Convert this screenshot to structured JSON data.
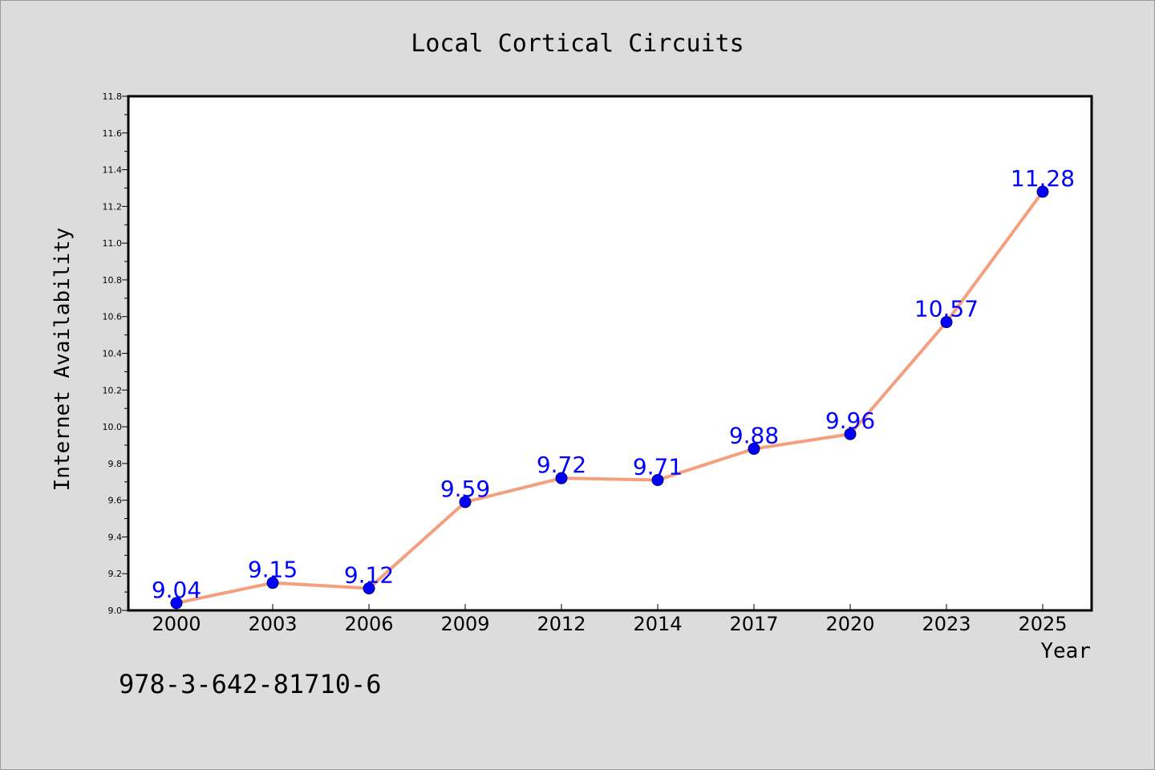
{
  "chart_data": {
    "type": "line",
    "title": "Local Cortical Circuits",
    "xlabel": "Year",
    "ylabel": "Internet Availability",
    "categories": [
      "2000",
      "2003",
      "2006",
      "2009",
      "2012",
      "2014",
      "2017",
      "2020",
      "2023",
      "2025"
    ],
    "series": [
      {
        "values": [
          9.04,
          9.15,
          9.12,
          9.59,
          9.72,
          9.71,
          9.88,
          9.96,
          10.57,
          11.28
        ],
        "data_labels": [
          "9.04",
          "9.15",
          "9.12",
          "9.59",
          "9.72",
          "9.71",
          "9.88",
          "9.96",
          "10.57",
          "11.28"
        ]
      }
    ],
    "ylim": [
      9.0,
      11.8
    ],
    "yticks": [
      "9.0",
      "9.2",
      "9.4",
      "9.6",
      "9.8",
      "10.0",
      "10.2",
      "10.4",
      "10.6",
      "10.8",
      "11.0",
      "11.2",
      "11.4",
      "11.6",
      "11.8"
    ],
    "grid": false,
    "legend": "none",
    "colors": {
      "line": "#f4a07f",
      "marker": "#0000ff",
      "label": "#0000ff",
      "background": "#dcdcdc",
      "plot_background": "#ffffff"
    }
  },
  "footnote": "978-3-642-81710-6"
}
